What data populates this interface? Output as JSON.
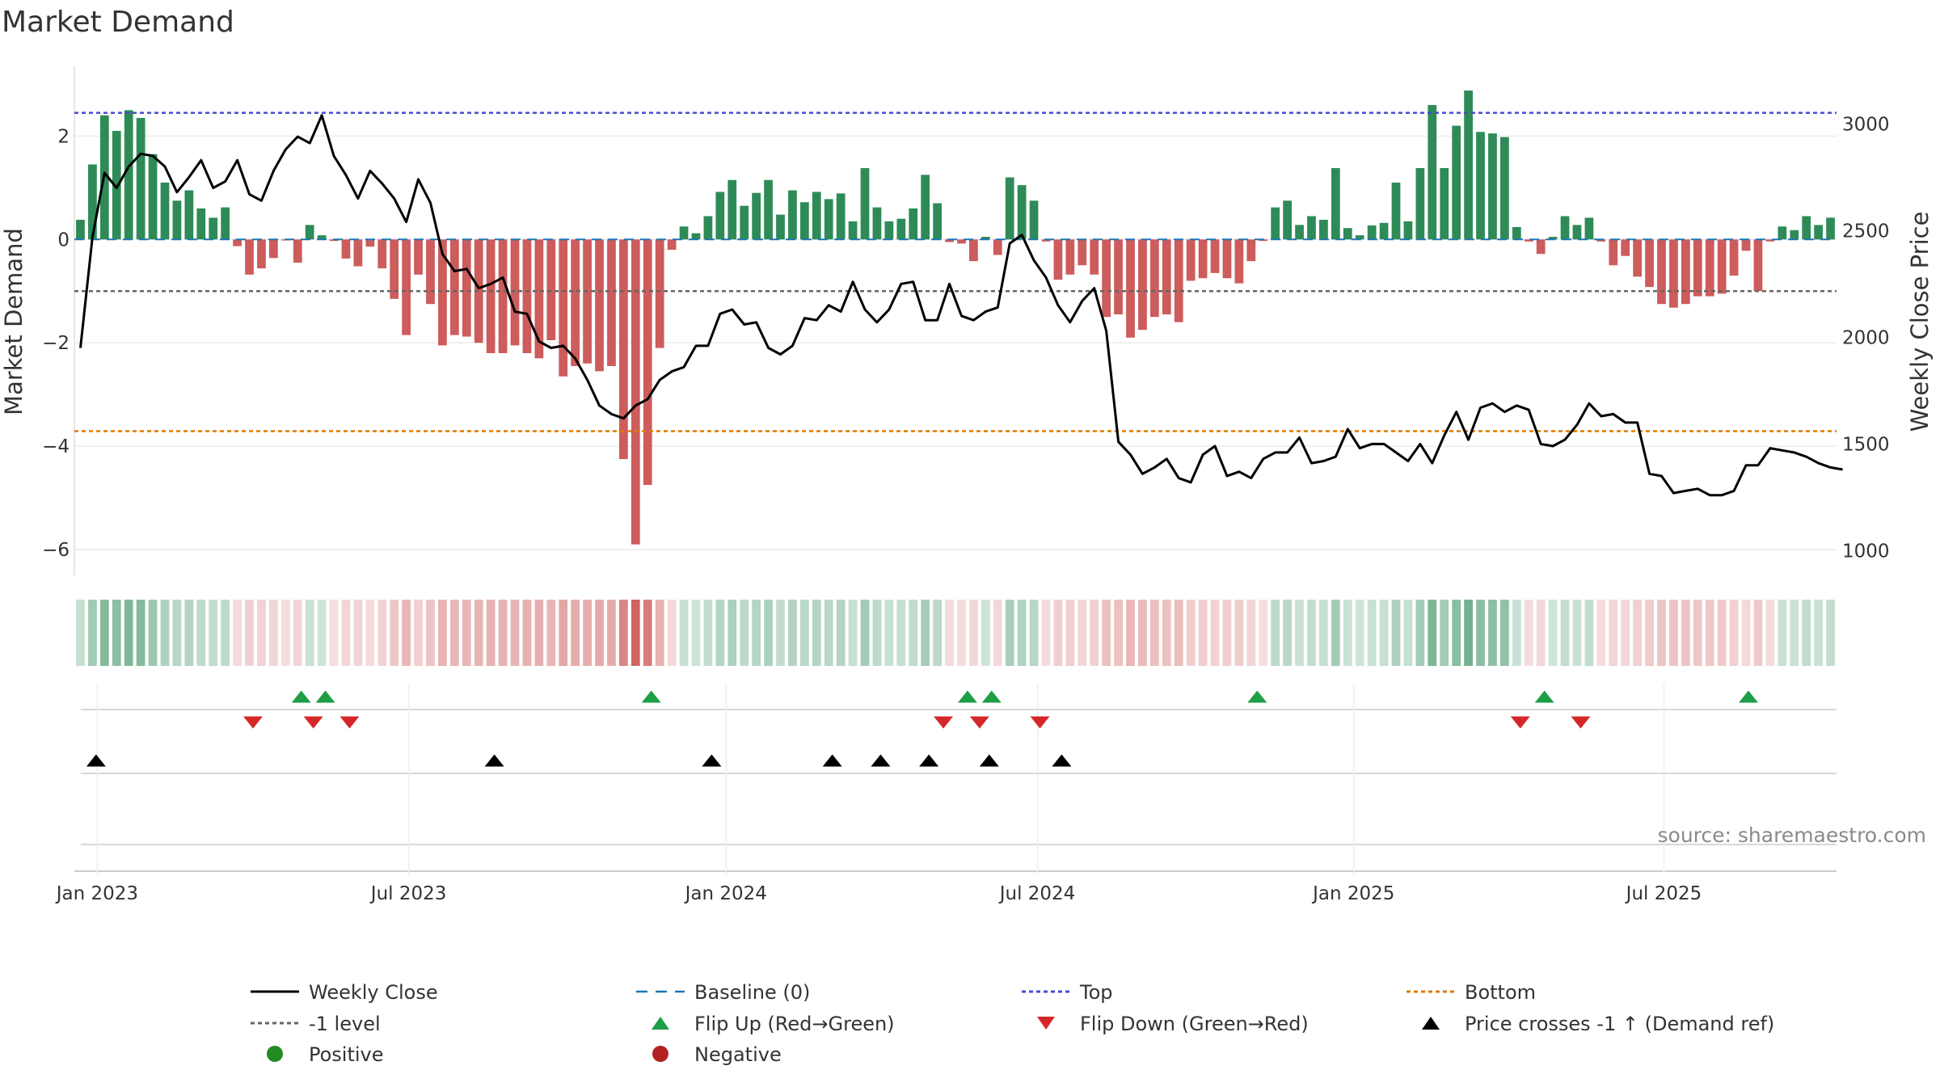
{
  "chart_data": {
    "type": "bar",
    "title": "Market Demand",
    "ylabel": "Market Demand",
    "y2label": "Weekly Close Price",
    "source_text": "source: sharemaestro.com",
    "ylim": [
      -6.5,
      3.35
    ],
    "y2lim": [
      884,
      3270
    ],
    "yticks": [
      2,
      0,
      -2,
      -4,
      -6
    ],
    "yticklabels": [
      "2",
      "0",
      "−2",
      "−4",
      "−6"
    ],
    "y2ticks": [
      3000,
      2500,
      2000,
      1500,
      1000
    ],
    "y2ticklabels": [
      "3000",
      "2500",
      "2000",
      "1500",
      "1000"
    ],
    "xticks": [
      {
        "label": "Jan 2023",
        "week": 1.4
      },
      {
        "label": "Jul 2023",
        "week": 27.2
      },
      {
        "label": "Jan 2024",
        "week": 53.5
      },
      {
        "label": "Jul 2024",
        "week": 79.3
      },
      {
        "label": "Jan 2025",
        "week": 105.5
      },
      {
        "label": "Jul 2025",
        "week": 131.2
      }
    ],
    "levels": {
      "baseline": 0,
      "top": 2.45,
      "minus_one": -1,
      "bottom_price": 1560
    },
    "demand_values": [
      0.38,
      1.45,
      2.4,
      2.1,
      2.5,
      2.35,
      1.65,
      1.1,
      0.75,
      0.95,
      0.6,
      0.42,
      0.62,
      -0.13,
      -0.68,
      -0.56,
      -0.36,
      -0.02,
      -0.45,
      0.28,
      0.08,
      -0.03,
      -0.37,
      -0.52,
      -0.14,
      -0.56,
      -1.15,
      -1.85,
      -0.68,
      -1.25,
      -2.05,
      -1.85,
      -1.88,
      -2.0,
      -2.2,
      -2.2,
      -2.05,
      -2.2,
      -2.3,
      -1.95,
      -2.65,
      -2.45,
      -2.4,
      -2.55,
      -2.45,
      -4.25,
      -5.9,
      -4.75,
      -2.1,
      -0.2,
      0.25,
      0.12,
      0.45,
      0.92,
      1.15,
      0.65,
      0.9,
      1.15,
      0.48,
      0.95,
      0.72,
      0.92,
      0.78,
      0.89,
      0.35,
      1.38,
      0.62,
      0.35,
      0.4,
      0.6,
      1.25,
      0.7,
      -0.05,
      -0.08,
      -0.42,
      0.05,
      -0.3,
      1.2,
      1.05,
      0.75,
      -0.04,
      -0.78,
      -0.68,
      -0.5,
      -0.68,
      -1.5,
      -1.45,
      -1.9,
      -1.75,
      -1.5,
      -1.45,
      -1.6,
      -0.8,
      -0.75,
      -0.65,
      -0.75,
      -0.85,
      -0.42,
      -0.03,
      0.62,
      0.75,
      0.28,
      0.45,
      0.38,
      1.38,
      0.22,
      0.08,
      0.27,
      0.32,
      1.1,
      0.35,
      1.38,
      2.6,
      1.38,
      2.2,
      2.88,
      2.08,
      2.05,
      1.98,
      0.24,
      -0.04,
      -0.28,
      0.05,
      0.45,
      0.28,
      0.42,
      -0.04,
      -0.5,
      -0.32,
      -0.72,
      -0.92,
      -1.25,
      -1.32,
      -1.25,
      -1.1,
      -1.1,
      -1.05,
      -0.7,
      -0.22,
      -1.0,
      -0.04,
      0.25,
      0.18,
      0.45,
      0.28,
      0.42
    ],
    "price_values": [
      1950,
      2470,
      2770,
      2700,
      2800,
      2860,
      2850,
      2800,
      2680,
      2750,
      2830,
      2700,
      2730,
      2830,
      2670,
      2640,
      2780,
      2880,
      2940,
      2910,
      3040,
      2850,
      2760,
      2650,
      2780,
      2720,
      2650,
      2540,
      2740,
      2630,
      2390,
      2310,
      2320,
      2230,
      2250,
      2280,
      2120,
      2110,
      1980,
      1950,
      1960,
      1900,
      1800,
      1680,
      1640,
      1620,
      1680,
      1710,
      1800,
      1840,
      1860,
      1960,
      1960,
      2110,
      2130,
      2060,
      2070,
      1950,
      1920,
      1960,
      2090,
      2080,
      2150,
      2120,
      2260,
      2130,
      2070,
      2130,
      2250,
      2260,
      2080,
      2080,
      2250,
      2100,
      2080,
      2120,
      2140,
      2440,
      2480,
      2360,
      2280,
      2150,
      2070,
      2170,
      2230,
      2030,
      1510,
      1450,
      1360,
      1390,
      1430,
      1340,
      1320,
      1450,
      1490,
      1350,
      1370,
      1340,
      1430,
      1460,
      1460,
      1530,
      1410,
      1420,
      1440,
      1570,
      1480,
      1500,
      1500,
      1460,
      1420,
      1500,
      1410,
      1540,
      1650,
      1520,
      1670,
      1690,
      1650,
      1680,
      1660,
      1500,
      1490,
      1520,
      1590,
      1690,
      1630,
      1640,
      1600,
      1600,
      1360,
      1350,
      1270,
      1280,
      1290,
      1260,
      1260,
      1280,
      1400,
      1400,
      1480,
      1470,
      1460,
      1440,
      1410,
      1390,
      1380
    ],
    "flip_up_weeks": [
      18.3,
      20.3,
      47.3,
      73.5,
      75.5,
      97.5,
      121.3,
      138.2
    ],
    "flip_down_weeks": [
      14.3,
      19.3,
      22.3,
      71.5,
      74.5,
      79.5,
      119.3,
      124.3
    ],
    "price_cross_weeks": [
      1.3,
      34.3,
      52.3,
      62.3,
      66.3,
      70.3,
      75.3,
      81.3
    ],
    "legend": [
      {
        "label": "Weekly Close",
        "kind": "line",
        "color": "#000000"
      },
      {
        "label": "Baseline (0)",
        "kind": "dash",
        "color": "#1f77b4"
      },
      {
        "label": "Top",
        "kind": "dot",
        "color": "#4a4ad0"
      },
      {
        "label": "Bottom",
        "kind": "dot",
        "color": "#e07b00"
      },
      {
        "label": "-1 level",
        "kind": "dot",
        "color": "#666666"
      },
      {
        "label": "Flip Up (Red→Green)",
        "kind": "tri-up",
        "color": "#1e9e46"
      },
      {
        "label": "Flip Down (Green→Red)",
        "kind": "tri-down",
        "color": "#d62728"
      },
      {
        "label": "Price crosses -1 ↑ (Demand ref)",
        "kind": "tri-up",
        "color": "#000000"
      },
      {
        "label": "Positive",
        "kind": "circle",
        "color": "#228b22"
      },
      {
        "label": "Negative",
        "kind": "circle",
        "color": "#b22222"
      }
    ],
    "colors": {
      "positive_bar": "#2e8b57",
      "negative_bar": "#cd5c5c",
      "price_line": "#000000",
      "baseline": "#1f77b4",
      "top": "#4a4ad0",
      "bottom": "#e07b00",
      "minus_one": "#666666",
      "flip_up": "#1e9e46",
      "flip_down": "#d62728",
      "cross": "#000000"
    }
  }
}
